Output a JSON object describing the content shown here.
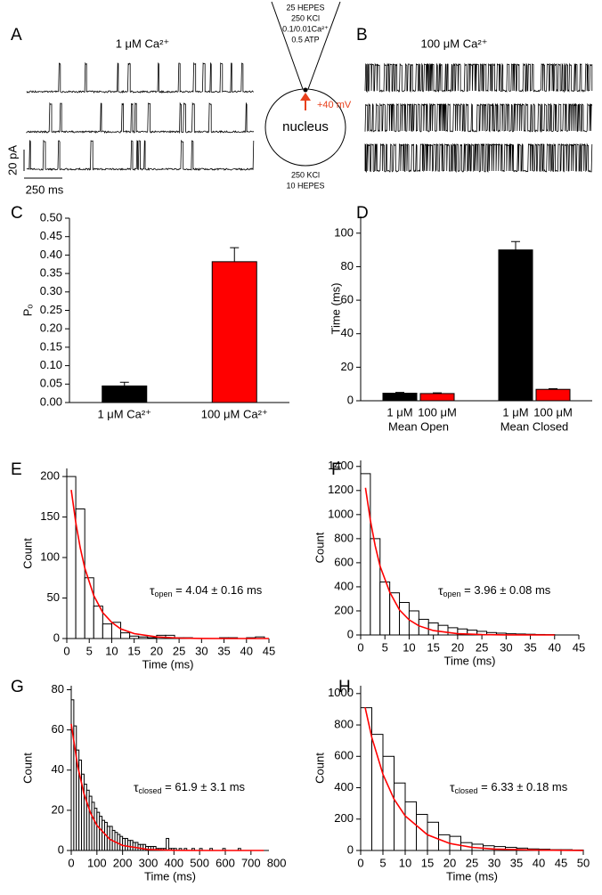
{
  "panel_a": {
    "label": "A",
    "title": "1 μM Ca²⁺",
    "scale_y": "20 pA",
    "scale_x": "250 ms"
  },
  "schematic": {
    "pipette": [
      "25 HEPES",
      "250 KCl",
      "0.1/0.01Ca²⁺",
      "0.5 ATP"
    ],
    "voltage": "+40 mV",
    "nucleus": "nucleus",
    "bath": [
      "250 KCl",
      "10 HEPES"
    ]
  },
  "panel_b": {
    "label": "B",
    "title": "100 μM Ca²⁺"
  },
  "chart_data": [
    {
      "type": "bar",
      "label": "C",
      "ylabel": "Pₒ",
      "categories": [
        "1 μM Ca²⁺",
        "100 μM Ca²⁺"
      ],
      "values": [
        0.045,
        0.382
      ],
      "errors": [
        0.01,
        0.038
      ],
      "colors": [
        "#000000",
        "#ff0000"
      ],
      "ylim": [
        0,
        0.5
      ],
      "yticks": [
        {
          "value": 0,
          "label": "0.00"
        },
        {
          "value": 0.05,
          "label": "0.05"
        },
        {
          "value": 0.1,
          "label": "0.10"
        },
        {
          "value": 0.15,
          "label": "0.15"
        },
        {
          "value": 0.2,
          "label": "0.20"
        },
        {
          "value": 0.25,
          "label": "0.25"
        },
        {
          "value": 0.3,
          "label": "0.30"
        },
        {
          "value": 0.35,
          "label": "0.35"
        },
        {
          "value": 0.4,
          "label": "0.40"
        },
        {
          "value": 0.45,
          "label": "0.45"
        },
        {
          "value": 0.5,
          "label": "0.50"
        }
      ]
    },
    {
      "type": "bar",
      "label": "D",
      "ylabel": "Time (ms)",
      "categories": [
        "Mean Open",
        "Mean Closed"
      ],
      "series": [
        {
          "name": "1 μM",
          "color": "#000000",
          "values": [
            4.5,
            90
          ],
          "errors": [
            0.5,
            5
          ]
        },
        {
          "name": "100 μM",
          "color": "#ff0000",
          "values": [
            4.3,
            6.8
          ],
          "errors": [
            0.4,
            0.4
          ]
        }
      ],
      "ylim": [
        0,
        110
      ],
      "yticks": [
        0,
        20,
        40,
        60,
        80,
        100
      ]
    },
    {
      "type": "histogram",
      "label": "E",
      "xlabel": "Time (ms)",
      "ylabel": "Count",
      "bins": [
        0,
        2,
        4,
        6,
        8,
        10,
        12,
        14,
        16,
        18,
        20,
        22,
        24,
        26,
        28,
        30,
        32,
        34,
        36,
        38,
        40,
        42,
        44
      ],
      "counts": [
        200,
        160,
        75,
        40,
        18,
        20,
        7,
        3,
        2,
        1,
        4,
        4,
        1,
        1,
        0,
        0,
        0,
        1,
        1,
        0,
        1,
        2
      ],
      "fit": {
        "color": "#ff0000",
        "x": [
          1,
          2,
          3,
          4,
          6,
          8,
          10,
          12,
          15,
          20,
          25,
          30,
          35,
          40,
          45
        ],
        "y": [
          183.5,
          143,
          112,
          87,
          53,
          32,
          20,
          12,
          6,
          2,
          0.5,
          0.1,
          0,
          0,
          0
        ]
      },
      "annotation": {
        "symbol": "τ",
        "subscript": "open",
        "text": " = 4.04 ± 0.16 ms"
      },
      "xlim": [
        0,
        45
      ],
      "xticks": [
        0,
        5,
        10,
        15,
        20,
        25,
        30,
        35,
        40,
        45
      ],
      "ylim": [
        0,
        210
      ],
      "yticks": [
        0,
        50,
        100,
        150,
        200
      ]
    },
    {
      "type": "histogram",
      "label": "F",
      "xlabel": "Time (ms)",
      "ylabel": "Count",
      "bins": [
        0,
        2,
        4,
        6,
        8,
        10,
        12,
        14,
        16,
        18,
        20,
        22,
        24,
        26,
        28,
        30,
        32,
        34,
        36,
        38,
        40
      ],
      "counts": [
        1340,
        800,
        440,
        350,
        270,
        200,
        130,
        100,
        80,
        60,
        50,
        40,
        30,
        20,
        15,
        10,
        8,
        6,
        4,
        3
      ],
      "fit": {
        "color": "#ff0000",
        "x": [
          1,
          2,
          3,
          4,
          6,
          8,
          10,
          12,
          15,
          20,
          25,
          30,
          40
        ],
        "y": [
          1223,
          952,
          741,
          571,
          355,
          208,
          126,
          76,
          36,
          10,
          3,
          1,
          0
        ]
      },
      "annotation": {
        "symbol": "τ",
        "subscript": "open",
        "text": " = 3.96 ± 0.08 ms"
      },
      "xlim": [
        0,
        45
      ],
      "xticks": [
        0,
        5,
        10,
        15,
        20,
        25,
        30,
        35,
        40,
        45
      ],
      "ylim": [
        0,
        1450
      ],
      "yticks": [
        0,
        200,
        400,
        600,
        800,
        1000,
        1200,
        1400
      ]
    },
    {
      "type": "histogram",
      "label": "G",
      "xlabel": "Time (ms)",
      "ylabel": "Count",
      "bins": [
        0,
        10,
        20,
        30,
        40,
        50,
        60,
        70,
        80,
        90,
        100,
        110,
        120,
        130,
        140,
        150,
        160,
        170,
        180,
        190,
        200,
        210,
        220,
        230,
        240,
        250,
        260,
        270,
        280,
        290,
        300,
        310,
        320,
        330,
        340,
        350,
        360,
        370,
        380,
        390,
        400,
        410,
        420,
        430,
        440,
        450,
        460,
        470,
        480,
        490,
        500,
        510,
        520,
        530,
        540,
        550,
        560,
        570,
        580,
        590,
        600,
        610,
        620,
        630,
        640,
        650,
        660,
        670,
        680,
        690,
        700
      ],
      "counts": [
        75,
        62,
        50,
        45,
        38,
        33,
        30,
        27,
        24,
        21,
        19,
        17,
        15,
        14,
        12,
        12,
        10,
        9,
        8,
        7,
        6,
        6,
        5,
        5,
        4,
        4,
        3,
        3,
        3,
        2,
        2,
        2,
        2,
        1,
        1,
        1,
        1,
        6,
        1,
        1,
        1,
        0,
        1,
        0,
        1,
        0,
        0,
        1,
        0,
        0,
        1,
        0,
        0,
        0,
        1,
        0,
        0,
        0,
        0,
        1,
        0,
        0,
        0,
        0,
        0,
        1,
        0,
        0,
        0,
        0
      ],
      "fit": {
        "color": "#ff0000",
        "x": [
          0,
          25,
          50,
          75,
          100,
          150,
          200,
          300,
          400,
          500,
          600,
          750
        ],
        "y": [
          63,
          42,
          28,
          18.7,
          12.5,
          5.6,
          2.5,
          0.5,
          0.1,
          0,
          0,
          0
        ]
      },
      "annotation": {
        "symbol": "τ",
        "subscript": "closed",
        "text": " = 61.9 ± 3.1 ms"
      },
      "xlim": [
        0,
        770
      ],
      "xticks": [
        0,
        100,
        200,
        300,
        400,
        500,
        600,
        700,
        800
      ],
      "ylim": [
        0,
        82
      ],
      "yticks": [
        0,
        20,
        40,
        60,
        80
      ]
    },
    {
      "type": "histogram",
      "label": "H",
      "xlabel": "Time (ms)",
      "ylabel": "Count",
      "bins": [
        0,
        2.5,
        5,
        7.5,
        10,
        12.5,
        15,
        17.5,
        20,
        22.5,
        25,
        27.5,
        30,
        32.5,
        35,
        37.5,
        40,
        42.5,
        45,
        47.5,
        50
      ],
      "counts": [
        910,
        740,
        600,
        430,
        310,
        230,
        180,
        100,
        90,
        50,
        40,
        30,
        25,
        20,
        15,
        10,
        8,
        5,
        5,
        3
      ],
      "fit": {
        "color": "#ff0000",
        "x": [
          1,
          2.5,
          5,
          7.5,
          10,
          15,
          20,
          25,
          30,
          40,
          50
        ],
        "y": [
          912,
          720,
          486,
          327,
          220,
          100,
          45,
          20,
          9,
          2,
          0
        ]
      },
      "annotation": {
        "symbol": "τ",
        "subscript": "closed",
        "text": " = 6.33 ± 0.18 ms"
      },
      "xlim": [
        0,
        50
      ],
      "xticks": [
        0,
        5,
        10,
        15,
        20,
        25,
        30,
        35,
        40,
        45,
        50
      ],
      "ylim": [
        0,
        1050
      ],
      "yticks": [
        0,
        200,
        400,
        600,
        800,
        1000
      ]
    }
  ]
}
